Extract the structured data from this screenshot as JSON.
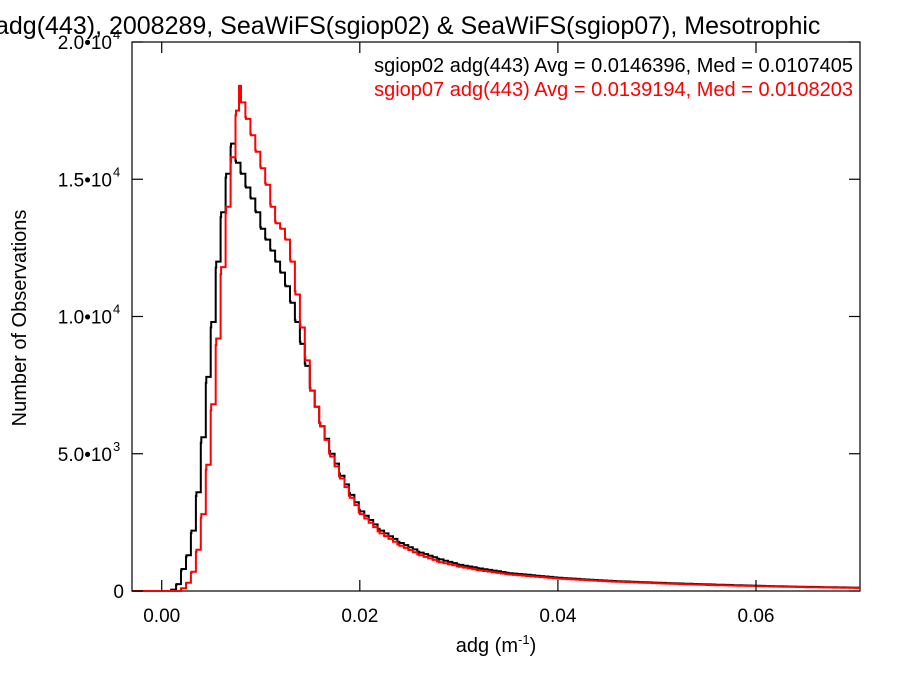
{
  "chart_data": {
    "type": "line",
    "title": "adg(443), 2008289, SeaWiFS(sgiop02) & SeaWiFS(sgiop07), Mesotrophic",
    "xlabel": "adg (m",
    "xlabel_sup": "-1",
    "xlabel_close": ")",
    "ylabel": "Number of Observations",
    "xlim": [
      -0.003,
      0.0705
    ],
    "ylim": [
      0,
      20000
    ],
    "x_ticks": [
      {
        "value": 0.0,
        "label": "0.00"
      },
      {
        "value": 0.02,
        "label": "0.02"
      },
      {
        "value": 0.04,
        "label": "0.04"
      },
      {
        "value": 0.06,
        "label": "0.06"
      }
    ],
    "y_ticks": [
      {
        "value": 0,
        "label": "0",
        "exp": ""
      },
      {
        "value": 5000,
        "label": "5.0•10",
        "exp": "3"
      },
      {
        "value": 10000,
        "label": "1.0•10",
        "exp": "4"
      },
      {
        "value": 15000,
        "label": "1.5•10",
        "exp": "4"
      },
      {
        "value": 20000,
        "label": "2.0•10",
        "exp": "4"
      }
    ],
    "legend": [
      {
        "text": "sgiop02 adg(443) Avg = 0.0146396, Med = 0.0107405",
        "color": "#000000"
      },
      {
        "text": "sgiop07 adg(443) Avg = 0.0139194, Med = 0.0108203",
        "color": "#ff0000"
      }
    ],
    "series": [
      {
        "name": "sgiop02",
        "color": "#000000",
        "points": [
          [
            -0.003,
            0
          ],
          [
            0.0005,
            0
          ],
          [
            0.001,
            50
          ],
          [
            0.0015,
            250
          ],
          [
            0.002,
            800
          ],
          [
            0.0025,
            1300
          ],
          [
            0.003,
            2200
          ],
          [
            0.0035,
            3600
          ],
          [
            0.004,
            5600
          ],
          [
            0.0045,
            7800
          ],
          [
            0.005,
            9800
          ],
          [
            0.0055,
            12000
          ],
          [
            0.006,
            13800
          ],
          [
            0.0065,
            15200
          ],
          [
            0.007,
            16300
          ],
          [
            0.0075,
            15600
          ],
          [
            0.008,
            15200
          ],
          [
            0.0085,
            14700
          ],
          [
            0.009,
            14300
          ],
          [
            0.0095,
            13800
          ],
          [
            0.01,
            13200
          ],
          [
            0.0105,
            12800
          ],
          [
            0.011,
            12400
          ],
          [
            0.0115,
            12000
          ],
          [
            0.012,
            11600
          ],
          [
            0.0125,
            11100
          ],
          [
            0.013,
            10500
          ],
          [
            0.0135,
            9800
          ],
          [
            0.014,
            9000
          ],
          [
            0.0145,
            8200
          ],
          [
            0.015,
            7300
          ],
          [
            0.016,
            6000
          ],
          [
            0.017,
            5000
          ],
          [
            0.018,
            4200
          ],
          [
            0.019,
            3500
          ],
          [
            0.02,
            2900
          ],
          [
            0.022,
            2200
          ],
          [
            0.024,
            1750
          ],
          [
            0.026,
            1400
          ],
          [
            0.028,
            1150
          ],
          [
            0.03,
            950
          ],
          [
            0.032,
            820
          ],
          [
            0.035,
            650
          ],
          [
            0.04,
            480
          ],
          [
            0.045,
            370
          ],
          [
            0.05,
            300
          ],
          [
            0.055,
            240
          ],
          [
            0.06,
            190
          ],
          [
            0.065,
            150
          ],
          [
            0.0705,
            120
          ]
        ]
      },
      {
        "name": "sgiop07",
        "color": "#ff0000",
        "points": [
          [
            -0.003,
            0
          ],
          [
            0.0015,
            0
          ],
          [
            0.002,
            100
          ],
          [
            0.0025,
            300
          ],
          [
            0.003,
            700
          ],
          [
            0.0035,
            1500
          ],
          [
            0.004,
            2800
          ],
          [
            0.0045,
            4600
          ],
          [
            0.005,
            6800
          ],
          [
            0.0055,
            9200
          ],
          [
            0.006,
            11800
          ],
          [
            0.0065,
            14000
          ],
          [
            0.007,
            15800
          ],
          [
            0.0075,
            17500
          ],
          [
            0.0078,
            18400
          ],
          [
            0.008,
            17800
          ],
          [
            0.0085,
            17200
          ],
          [
            0.009,
            16600
          ],
          [
            0.0095,
            16000
          ],
          [
            0.01,
            15400
          ],
          [
            0.0105,
            14800
          ],
          [
            0.011,
            14000
          ],
          [
            0.0115,
            13400
          ],
          [
            0.012,
            13200
          ],
          [
            0.0125,
            12800
          ],
          [
            0.013,
            12000
          ],
          [
            0.0135,
            10800
          ],
          [
            0.014,
            9600
          ],
          [
            0.0145,
            8400
          ],
          [
            0.015,
            7300
          ],
          [
            0.016,
            6000
          ],
          [
            0.017,
            4900
          ],
          [
            0.018,
            4100
          ],
          [
            0.019,
            3400
          ],
          [
            0.02,
            2800
          ],
          [
            0.022,
            2100
          ],
          [
            0.024,
            1650
          ],
          [
            0.026,
            1300
          ],
          [
            0.028,
            1050
          ],
          [
            0.03,
            880
          ],
          [
            0.032,
            750
          ],
          [
            0.035,
            600
          ],
          [
            0.04,
            450
          ],
          [
            0.045,
            350
          ],
          [
            0.05,
            280
          ],
          [
            0.055,
            220
          ],
          [
            0.06,
            180
          ],
          [
            0.065,
            140
          ],
          [
            0.0705,
            110
          ]
        ]
      }
    ]
  }
}
